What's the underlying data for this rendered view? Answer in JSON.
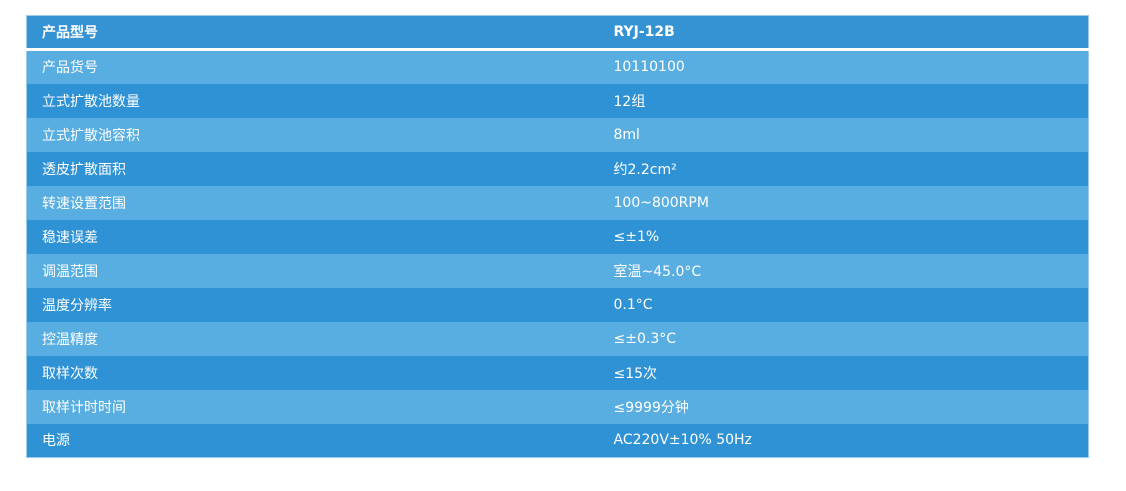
{
  "table": {
    "header": [
      "产品型号",
      "RYJ-12B"
    ],
    "rows": [
      [
        "产品货号",
        "10110100"
      ],
      [
        "立式扩散池数量",
        "12组"
      ],
      [
        "立式扩散池容积",
        "8ml"
      ],
      [
        "透皮扩散面积",
        "约2.2cm²"
      ],
      [
        "转速设置范围",
        "100~800RPM"
      ],
      [
        "稳速误差",
        "≤±1%"
      ],
      [
        "调温范围",
        "室温~45.0°C"
      ],
      [
        "温度分辨率",
        "0.1°C"
      ],
      [
        "控温精度",
        "≤±0.3°C"
      ],
      [
        "取样次数",
        "≤15次"
      ],
      [
        "取样计时时间",
        "≤9999分钟"
      ],
      [
        "电源",
        "AC220V±10% 50Hz"
      ]
    ]
  }
}
